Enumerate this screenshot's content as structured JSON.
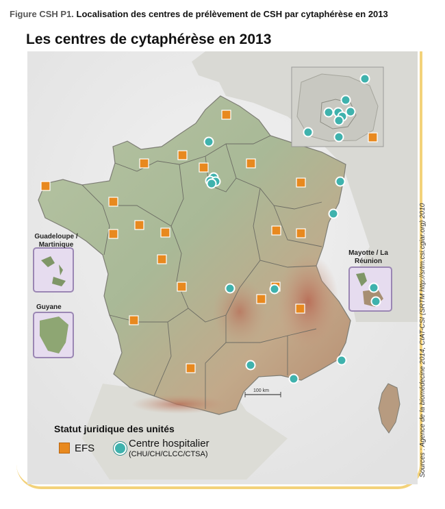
{
  "figure": {
    "caption_prefix": "Figure CSH P1.",
    "caption_text": "Localisation des centres de prélèvement de CSH par cytaphérèse en 2013"
  },
  "map": {
    "title": "Les centres de cytaphérèse en 2013",
    "scale_label": "100 km",
    "insets": {
      "guadeloupe_martinique": "Guadeloupe / Martinique",
      "guyane": "Guyane",
      "mayotte_reunion": "Mayotte / La Réunion"
    },
    "colors": {
      "efs": "#e8891f",
      "centre_hospitalier": "#3fb2ad",
      "frame": "#f3d27a"
    },
    "efs_centers": 21,
    "hospital_centers": 21
  },
  "legend": {
    "title": "Statut juridique des unités",
    "efs_label": "EFS",
    "ch_label": "Centre hospitalier",
    "ch_sub": "(CHU/CH/CLCC/CTSA)"
  },
  "source": "Sources : Agence de la biomédecine 2014, CIAT-CSI (SRTM http://srtm.csi.cgiar.org) 2010"
}
